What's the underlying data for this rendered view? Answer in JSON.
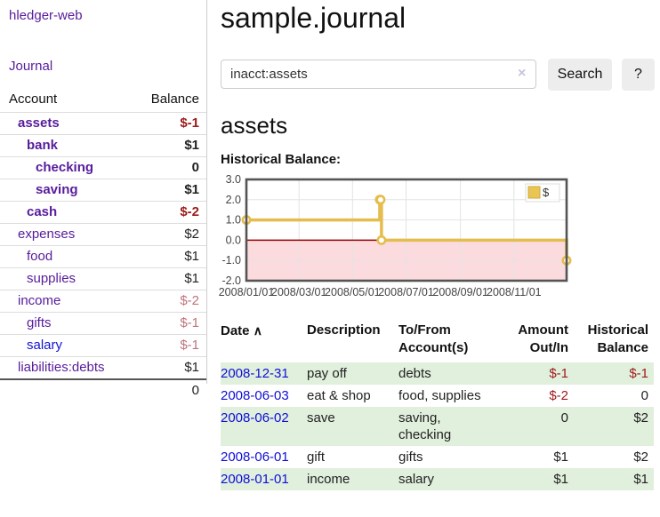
{
  "sidebar": {
    "brand": "hledger-web",
    "journal_link": "Journal",
    "table": {
      "account_header": "Account",
      "balance_header": "Balance",
      "rows": [
        {
          "label": "assets",
          "level": 1,
          "bold": true,
          "balance": "$-1",
          "neg": "strong"
        },
        {
          "label": "bank",
          "level": 2,
          "bold": true,
          "balance": "$1",
          "neg": "none"
        },
        {
          "label": "checking",
          "level": 3,
          "bold": true,
          "balance": "0",
          "neg": "none"
        },
        {
          "label": "saving",
          "level": 3,
          "bold": true,
          "balance": "$1",
          "neg": "none"
        },
        {
          "label": "cash",
          "level": 2,
          "bold": true,
          "balance": "$-2",
          "neg": "strong"
        },
        {
          "label": "expenses",
          "level": 1,
          "bold": false,
          "balance": "$2",
          "neg": "none"
        },
        {
          "label": "food",
          "level": 2,
          "bold": false,
          "balance": "$1",
          "neg": "none"
        },
        {
          "label": "supplies",
          "level": 2,
          "bold": false,
          "balance": "$1",
          "neg": "none"
        },
        {
          "label": "income",
          "level": 1,
          "bold": false,
          "balance": "$-2",
          "neg": "soft"
        },
        {
          "label": "gifts",
          "level": 2,
          "bold": false,
          "balance": "$-1",
          "neg": "soft"
        },
        {
          "label": "salary",
          "level": 2,
          "bold": false,
          "balance": "$-1",
          "neg": "soft",
          "link_color": "#1414d2"
        },
        {
          "label": "liabilities:debts",
          "level": 1,
          "bold": false,
          "balance": "$1",
          "neg": "none"
        }
      ],
      "total": "0"
    }
  },
  "main": {
    "title": "sample.journal",
    "search": {
      "value": "inacct:assets",
      "button_label": "Search",
      "help_label": "?"
    },
    "account_heading": "assets",
    "chart_heading": "Historical Balance:"
  },
  "icons": {
    "clear_search": "×",
    "sort_asc": "∧"
  },
  "chart_data": {
    "type": "line",
    "step": true,
    "title": "Historical Balance",
    "series": [
      {
        "name": "$",
        "color": "#e4bd4e",
        "points": [
          [
            "2008-01-01",
            1
          ],
          [
            "2008-06-01",
            2
          ],
          [
            "2008-06-02",
            2
          ],
          [
            "2008-06-03",
            0
          ],
          [
            "2008-12-31",
            -1
          ]
        ]
      }
    ],
    "x_range": [
      "2008-01-01",
      "2008-12-31"
    ],
    "ylim": [
      -2,
      3
    ],
    "yticks": [
      3.0,
      2.0,
      1.0,
      0.0,
      -1.0,
      -2.0
    ],
    "xticks": [
      "2008/01/01",
      "2008/03/01",
      "2008/05/01",
      "2008/07/01",
      "2008/09/01",
      "2008/11/01"
    ],
    "legend": {
      "label": "$",
      "position": "top-right",
      "swatch_fill": "#e9c654",
      "swatch_stroke": "#cfa93c"
    },
    "colors": {
      "negative_region": "#fcdbde",
      "zero_line": "#990000",
      "grid": "#e3e3e3",
      "border": "#545454"
    }
  },
  "register": {
    "headers": {
      "date": "Date",
      "description": "Description",
      "tofrom": "To/From Account(s)",
      "amount": "Amount Out/In",
      "historical": "Historical Balance"
    },
    "rows": [
      {
        "date": "2008-12-31",
        "description": "pay off",
        "tofrom": "debts",
        "amount": "$-1",
        "amount_neg": true,
        "historical": "$-1",
        "historical_neg": true
      },
      {
        "date": "2008-06-03",
        "description": "eat & shop",
        "tofrom": "food, supplies",
        "amount": "$-2",
        "amount_neg": true,
        "historical": "0",
        "historical_neg": false
      },
      {
        "date": "2008-06-02",
        "description": "save",
        "tofrom": "saving, checking",
        "amount": "0",
        "amount_neg": false,
        "historical": "$2",
        "historical_neg": false
      },
      {
        "date": "2008-06-01",
        "description": "gift",
        "tofrom": "gifts",
        "amount": "$1",
        "amount_neg": false,
        "historical": "$2",
        "historical_neg": false
      },
      {
        "date": "2008-01-01",
        "description": "income",
        "tofrom": "salary",
        "amount": "$1",
        "amount_neg": false,
        "historical": "$1",
        "historical_neg": false
      }
    ]
  }
}
